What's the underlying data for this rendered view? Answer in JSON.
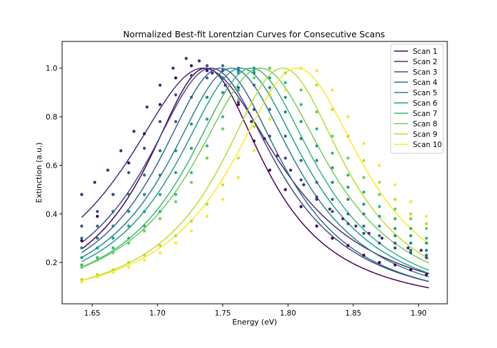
{
  "chart_data": {
    "type": "line",
    "title": "Normalized Best-fit Lorentzian Curves for Consecutive Scans",
    "xlabel": "Energy (eV)",
    "ylabel": "Extinction (a.u.)",
    "xlim": [
      1.627,
      1.922
    ],
    "ylim": [
      0.03,
      1.11
    ],
    "xticks": [
      1.65,
      1.7,
      1.75,
      1.8,
      1.85,
      1.9
    ],
    "xtick_labels": [
      "1.65",
      "1.70",
      "1.75",
      "1.80",
      "1.85",
      "1.90"
    ],
    "yticks": [
      0.2,
      0.4,
      0.6,
      0.8,
      1.0
    ],
    "ytick_labels": [
      "0.2",
      "0.4",
      "0.6",
      "0.8",
      "1.0"
    ],
    "legend_position": "top-right",
    "x_range": [
      1.642,
      1.908
    ],
    "series": [
      {
        "name": "Scan 1",
        "color": "#440154",
        "center": 1.737,
        "gamma": 0.0557,
        "x": [
          1.642,
          1.654,
          1.666,
          1.678,
          1.69,
          1.702,
          1.714,
          1.726,
          1.738,
          1.75,
          1.762,
          1.774,
          1.786,
          1.798,
          1.81,
          1.822,
          1.834,
          1.846,
          1.858,
          1.87,
          1.882,
          1.894,
          1.906
        ],
        "y": [
          0.29,
          0.39,
          0.48,
          0.61,
          0.73,
          0.85,
          0.96,
          1.01,
          0.99,
          0.96,
          0.85,
          0.7,
          0.58,
          0.5,
          0.43,
          0.35,
          0.3,
          0.27,
          0.23,
          0.2,
          0.19,
          0.17,
          0.15
        ]
      },
      {
        "name": "Scan 2",
        "color": "#482878",
        "center": 1.735,
        "gamma": 0.0737,
        "x": [
          1.642,
          1.652,
          1.662,
          1.672,
          1.682,
          1.692,
          1.702,
          1.712,
          1.722,
          1.732,
          1.742,
          1.752,
          1.762,
          1.772,
          1.782,
          1.792,
          1.802,
          1.812,
          1.822,
          1.832,
          1.842,
          1.852,
          1.862,
          1.872,
          1.882,
          1.892,
          1.902
        ],
        "y": [
          0.48,
          0.53,
          0.58,
          0.66,
          0.74,
          0.84,
          0.93,
          1.0,
          1.04,
          1.03,
          0.98,
          0.93,
          0.86,
          0.78,
          0.71,
          0.64,
          0.58,
          0.52,
          0.46,
          0.42,
          0.38,
          0.35,
          0.32,
          0.3,
          0.28,
          0.26,
          0.25
        ]
      },
      {
        "name": "Scan 3",
        "color": "#3e4989",
        "center": 1.741,
        "gamma": 0.0621,
        "x": [
          1.642,
          1.654,
          1.666,
          1.678,
          1.69,
          1.702,
          1.714,
          1.726,
          1.738,
          1.75,
          1.762,
          1.774,
          1.786,
          1.798,
          1.81,
          1.822,
          1.834,
          1.846,
          1.858,
          1.87,
          1.882,
          1.894,
          1.906
        ],
        "y": [
          0.35,
          0.41,
          0.48,
          0.57,
          0.67,
          0.78,
          0.89,
          0.97,
          1.01,
          0.99,
          0.92,
          0.83,
          0.72,
          0.63,
          0.54,
          0.47,
          0.41,
          0.36,
          0.32,
          0.28,
          0.26,
          0.24,
          0.22
        ]
      },
      {
        "name": "Scan 4",
        "color": "#31688e",
        "center": 1.748,
        "gamma": 0.0597,
        "x": [
          1.642,
          1.654,
          1.666,
          1.678,
          1.69,
          1.702,
          1.714,
          1.726,
          1.738,
          1.75,
          1.762,
          1.774,
          1.786,
          1.798,
          1.81,
          1.822,
          1.834,
          1.846,
          1.858,
          1.87,
          1.882,
          1.894,
          1.906
        ],
        "y": [
          0.3,
          0.35,
          0.41,
          0.48,
          0.56,
          0.66,
          0.78,
          0.88,
          0.96,
          1.01,
          0.99,
          0.93,
          0.83,
          0.72,
          0.62,
          0.53,
          0.46,
          0.4,
          0.35,
          0.31,
          0.28,
          0.25,
          0.23
        ]
      },
      {
        "name": "Scan 5",
        "color": "#26828e",
        "center": 1.757,
        "gamma": 0.0612,
        "x": [
          1.642,
          1.654,
          1.666,
          1.678,
          1.69,
          1.702,
          1.714,
          1.726,
          1.738,
          1.75,
          1.762,
          1.774,
          1.786,
          1.798,
          1.81,
          1.822,
          1.834,
          1.846,
          1.858,
          1.87,
          1.882,
          1.894,
          1.906
        ],
        "y": [
          0.26,
          0.3,
          0.35,
          0.41,
          0.48,
          0.56,
          0.66,
          0.77,
          0.88,
          0.96,
          1.0,
          0.98,
          0.92,
          0.82,
          0.71,
          0.62,
          0.53,
          0.46,
          0.4,
          0.35,
          0.31,
          0.28,
          0.25
        ]
      },
      {
        "name": "Scan 6",
        "color": "#1f9e89",
        "center": 1.764,
        "gamma": 0.0618,
        "x": [
          1.642,
          1.654,
          1.666,
          1.678,
          1.69,
          1.702,
          1.714,
          1.726,
          1.738,
          1.75,
          1.762,
          1.774,
          1.786,
          1.798,
          1.81,
          1.822,
          1.834,
          1.846,
          1.858,
          1.87,
          1.882,
          1.894,
          1.906
        ],
        "y": [
          0.22,
          0.26,
          0.3,
          0.35,
          0.41,
          0.48,
          0.57,
          0.67,
          0.79,
          0.9,
          0.98,
          1.0,
          0.96,
          0.88,
          0.78,
          0.68,
          0.59,
          0.51,
          0.44,
          0.39,
          0.34,
          0.31,
          0.28
        ]
      },
      {
        "name": "Scan 7",
        "color": "#35b779",
        "center": 1.772,
        "gamma": 0.0611,
        "x": [
          1.642,
          1.654,
          1.666,
          1.678,
          1.69,
          1.702,
          1.714,
          1.726,
          1.738,
          1.75,
          1.762,
          1.774,
          1.786,
          1.798,
          1.81,
          1.822,
          1.834,
          1.846,
          1.858,
          1.87,
          1.882,
          1.894,
          1.906
        ],
        "y": [
          0.19,
          0.22,
          0.26,
          0.3,
          0.35,
          0.41,
          0.48,
          0.57,
          0.68,
          0.8,
          0.91,
          0.99,
          1.0,
          0.94,
          0.85,
          0.75,
          0.65,
          0.56,
          0.49,
          0.43,
          0.38,
          0.34,
          0.3
        ]
      },
      {
        "name": "Scan 8",
        "color": "#6ece58",
        "center": 1.779,
        "gamma": 0.064,
        "x": [
          1.642,
          1.654,
          1.666,
          1.678,
          1.69,
          1.702,
          1.714,
          1.726,
          1.738,
          1.75,
          1.762,
          1.774,
          1.786,
          1.798,
          1.81,
          1.822,
          1.834,
          1.846,
          1.858,
          1.87,
          1.882,
          1.894,
          1.906
        ],
        "y": [
          0.18,
          0.21,
          0.24,
          0.28,
          0.33,
          0.38,
          0.45,
          0.53,
          0.63,
          0.75,
          0.87,
          0.96,
          1.0,
          0.98,
          0.91,
          0.82,
          0.72,
          0.63,
          0.55,
          0.48,
          0.42,
          0.38,
          0.34
        ]
      },
      {
        "name": "Scan 9",
        "color": "#b5de2b",
        "center": 1.796,
        "gamma": 0.0586,
        "x": [
          1.642,
          1.654,
          1.666,
          1.678,
          1.69,
          1.702,
          1.714,
          1.726,
          1.738,
          1.75,
          1.762,
          1.774,
          1.786,
          1.798,
          1.81,
          1.822,
          1.834,
          1.846,
          1.858,
          1.87,
          1.882,
          1.894,
          1.906
        ],
        "y": [
          0.13,
          0.15,
          0.17,
          0.2,
          0.23,
          0.27,
          0.31,
          0.37,
          0.44,
          0.52,
          0.63,
          0.76,
          0.89,
          0.98,
          1.0,
          0.93,
          0.83,
          0.72,
          0.62,
          0.53,
          0.46,
          0.4,
          0.36
        ]
      },
      {
        "name": "Scan 10",
        "color": "#fde725",
        "center": 1.807,
        "gamma": 0.0624,
        "x": [
          1.642,
          1.654,
          1.666,
          1.678,
          1.69,
          1.702,
          1.714,
          1.726,
          1.738,
          1.75,
          1.762,
          1.774,
          1.786,
          1.798,
          1.81,
          1.822,
          1.834,
          1.846,
          1.858,
          1.87,
          1.882,
          1.894,
          1.906
        ],
        "y": [
          0.12,
          0.14,
          0.16,
          0.18,
          0.21,
          0.24,
          0.28,
          0.33,
          0.39,
          0.46,
          0.55,
          0.66,
          0.79,
          0.91,
          1.0,
          0.99,
          0.91,
          0.8,
          0.69,
          0.6,
          0.52,
          0.45,
          0.39
        ]
      }
    ]
  }
}
